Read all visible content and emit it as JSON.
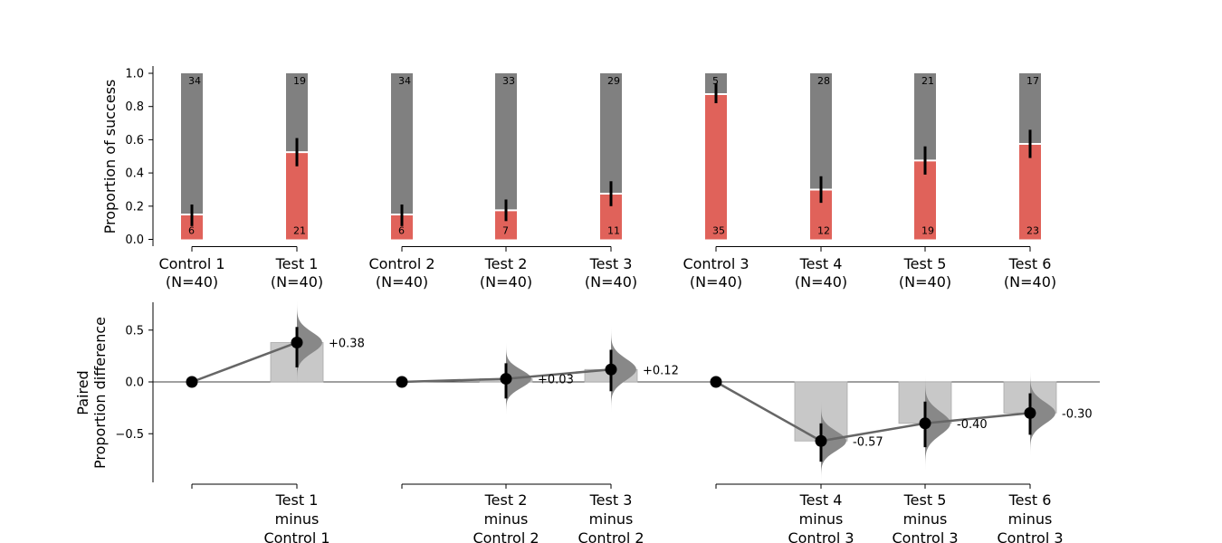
{
  "chart_data": [
    {
      "type": "bar",
      "ylabel": "Proportion of success",
      "ylim": [
        0,
        1.0
      ],
      "yticks": [
        "0.0",
        "0.2",
        "0.4",
        "0.6",
        "0.8",
        "1.0"
      ],
      "categories": [
        {
          "name": "Control 1",
          "n": "(N=40)",
          "success": 6,
          "fail": 34,
          "proportion": 0.15,
          "ci": [
            0.08,
            0.21
          ],
          "color": "#e0625a"
        },
        {
          "name": "Test 1",
          "n": "(N=40)",
          "success": 21,
          "fail": 19,
          "proportion": 0.525,
          "ci": [
            0.44,
            0.61
          ],
          "color": "#e0625a"
        },
        {
          "name": "Control 2",
          "n": "(N=40)",
          "success": 6,
          "fail": 34,
          "proportion": 0.15,
          "ci": [
            0.08,
            0.21
          ],
          "color": "#e0625a"
        },
        {
          "name": "Test 2",
          "n": "(N=40)",
          "success": 7,
          "fail": 33,
          "proportion": 0.175,
          "ci": [
            0.11,
            0.24
          ],
          "color": "#e0625a"
        },
        {
          "name": "Test 3",
          "n": "(N=40)",
          "success": 11,
          "fail": 29,
          "proportion": 0.275,
          "ci": [
            0.2,
            0.35
          ],
          "color": "#e0625a"
        },
        {
          "name": "Control 3",
          "n": "(N=40)",
          "success": 35,
          "fail": 5,
          "proportion": 0.875,
          "ci": [
            0.82,
            0.94
          ],
          "color": "#e0625a"
        },
        {
          "name": "Test 4",
          "n": "(N=40)",
          "success": 12,
          "fail": 28,
          "proportion": 0.3,
          "ci": [
            0.22,
            0.38
          ],
          "color": "#e0625a"
        },
        {
          "name": "Test 5",
          "n": "(N=40)",
          "success": 19,
          "fail": 21,
          "proportion": 0.475,
          "ci": [
            0.39,
            0.56
          ],
          "color": "#e0625a"
        },
        {
          "name": "Test 6",
          "n": "(N=40)",
          "success": 23,
          "fail": 17,
          "proportion": 0.575,
          "ci": [
            0.49,
            0.66
          ],
          "color": "#e0625a"
        }
      ],
      "fail_color": "#808080"
    },
    {
      "type": "scatter",
      "ylabel_line1": "Paired",
      "ylabel_line2": "Proportion difference",
      "ylim": [
        -0.97,
        0.77
      ],
      "yticks": [
        {
          "v": 0.5,
          "label": "0.5"
        },
        {
          "v": 0.0,
          "label": "0.0"
        },
        {
          "v": -0.5,
          "label": "−0.5"
        }
      ],
      "groups": [
        {
          "control_index": 0,
          "comparisons": [
            {
              "test_index": 1,
              "label": [
                "Test 1",
                "minus",
                "Control 1"
              ],
              "diff": 0.38,
              "ci": [
                0.14,
                0.53
              ],
              "annotation": "+0.38"
            }
          ]
        },
        {
          "control_index": 2,
          "comparisons": [
            {
              "test_index": 3,
              "label": [
                "Test 2",
                "minus",
                "Control 2"
              ],
              "diff": 0.03,
              "ci": [
                -0.16,
                0.18
              ],
              "annotation": "+0.03"
            },
            {
              "test_index": 4,
              "label": [
                "Test 3",
                "minus",
                "Control 2"
              ],
              "diff": 0.12,
              "ci": [
                -0.09,
                0.31
              ],
              "annotation": "+0.12"
            }
          ]
        },
        {
          "control_index": 5,
          "comparisons": [
            {
              "test_index": 6,
              "label": [
                "Test 4",
                "minus",
                "Control 3"
              ],
              "diff": -0.57,
              "ci": [
                -0.77,
                -0.4
              ],
              "annotation": "-0.57"
            },
            {
              "test_index": 7,
              "label": [
                "Test 5",
                "minus",
                "Control 3"
              ],
              "diff": -0.4,
              "ci": [
                -0.63,
                -0.19
              ],
              "annotation": "-0.40"
            },
            {
              "test_index": 8,
              "label": [
                "Test 6",
                "minus",
                "Control 3"
              ],
              "diff": -0.3,
              "ci": [
                -0.51,
                -0.11
              ],
              "annotation": "-0.30"
            }
          ]
        }
      ],
      "bar_color": "#c8c8c8",
      "line_color": "#666666",
      "dist_color": "#888888"
    }
  ]
}
